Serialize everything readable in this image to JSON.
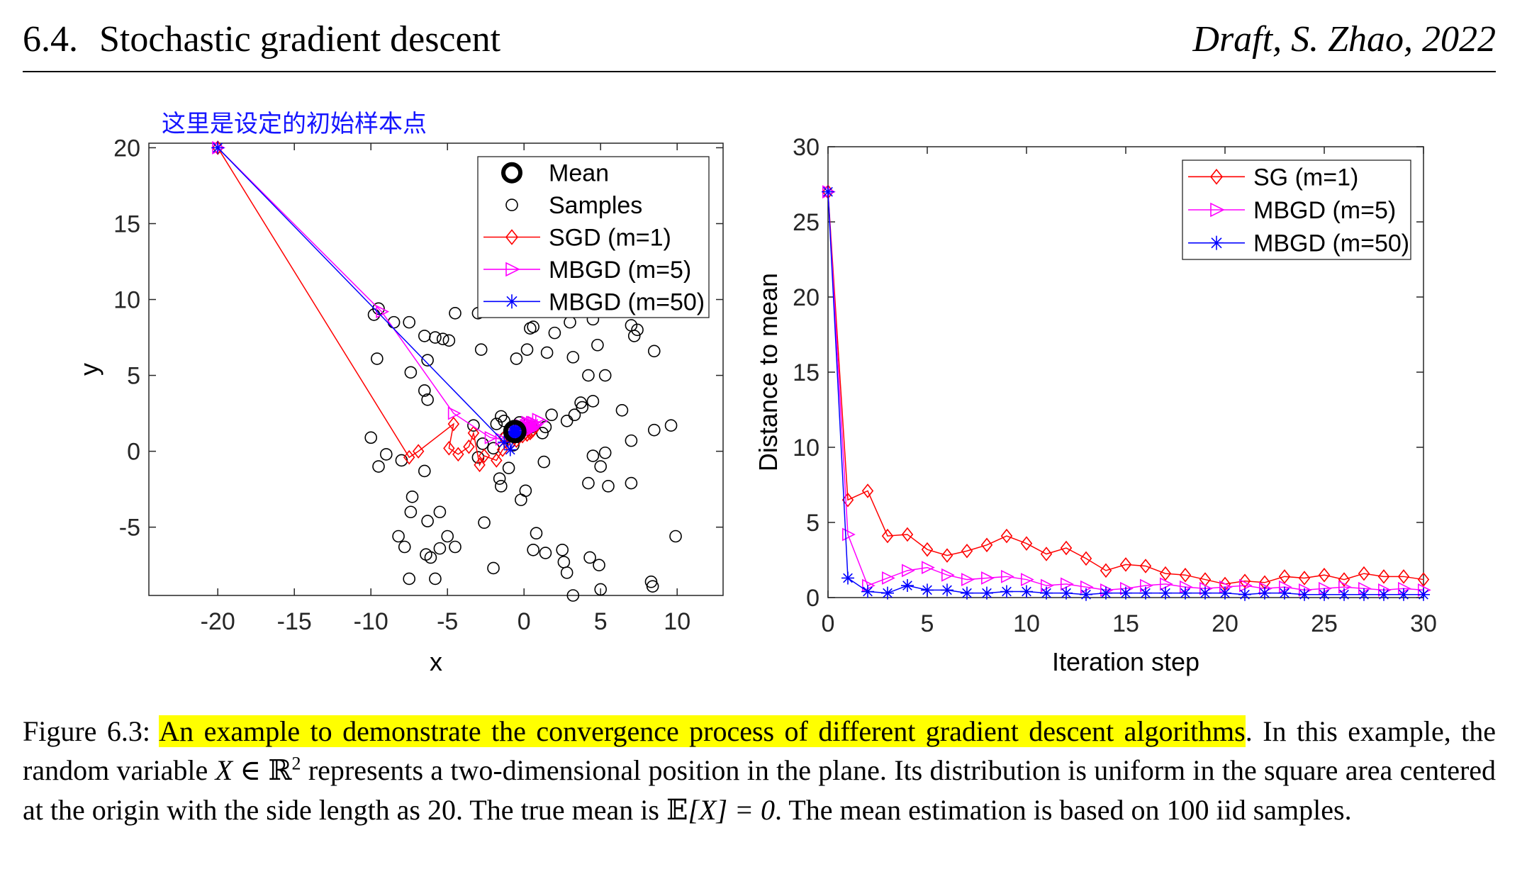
{
  "header": {
    "section_number": "6.4.",
    "section_title": "Stochastic gradient descent",
    "draft_note": "Draft, S. Zhao, 2022"
  },
  "annotation": {
    "text": "这里是设定的初始样本点",
    "color": "#1515ff"
  },
  "colors": {
    "sgd": "#ff0000",
    "mbgd5": "#ff00ff",
    "mbgd50": "#0000ff",
    "samples": "#000000",
    "highlight": "#ffff00"
  },
  "chart_data": [
    {
      "type": "scatter",
      "title": "",
      "xlabel": "x",
      "ylabel": "y",
      "xlim": [
        -24.5,
        13
      ],
      "ylim": [
        -9.5,
        20.3
      ],
      "xticks": [
        -20,
        -15,
        -10,
        -5,
        0,
        5,
        10
      ],
      "yticks": [
        -5,
        0,
        5,
        10,
        15,
        20
      ],
      "xtick_labels": [
        "-20",
        "-15",
        "-10",
        "-5",
        "0",
        "5",
        "10"
      ],
      "ytick_labels": [
        "-5",
        "0",
        "5",
        "10",
        "15",
        "20"
      ],
      "grid": false,
      "legend_position": "top-right",
      "legend": [
        "Mean",
        "Samples",
        "SGD (m=1)",
        "MBGD (m=5)",
        "MBGD (m=50)"
      ],
      "mean": [
        -0.6,
        1.3
      ],
      "samples": [
        [
          -9.8,
          9.0
        ],
        [
          -9.5,
          9.4
        ],
        [
          -8.5,
          8.5
        ],
        [
          -7.5,
          8.5
        ],
        [
          -6.5,
          7.6
        ],
        [
          -5.8,
          7.5
        ],
        [
          -5.3,
          7.4
        ],
        [
          -4.9,
          7.3
        ],
        [
          -4.5,
          9.1
        ],
        [
          -3.0,
          9.1
        ],
        [
          -9.6,
          6.1
        ],
        [
          -7.4,
          5.2
        ],
        [
          -6.3,
          6.0
        ],
        [
          -6.5,
          4.0
        ],
        [
          -6.3,
          3.4
        ],
        [
          -2.8,
          6.7
        ],
        [
          0.2,
          6.7
        ],
        [
          -0.5,
          6.1
        ],
        [
          1.5,
          6.5
        ],
        [
          3.2,
          6.2
        ],
        [
          4.2,
          5.0
        ],
        [
          5.3,
          5.0
        ],
        [
          0.4,
          8.1
        ],
        [
          0.6,
          8.2
        ],
        [
          2.0,
          7.8
        ],
        [
          3.0,
          8.5
        ],
        [
          4.8,
          7.0
        ],
        [
          7.0,
          8.3
        ],
        [
          7.4,
          8.0
        ],
        [
          7.2,
          7.6
        ],
        [
          8.5,
          6.6
        ],
        [
          4.5,
          8.7
        ],
        [
          -10.0,
          0.9
        ],
        [
          -9.0,
          -0.2
        ],
        [
          -9.5,
          -1.0
        ],
        [
          -8.0,
          -0.6
        ],
        [
          -6.5,
          -1.3
        ],
        [
          -7.3,
          -3.0
        ],
        [
          -7.4,
          -4.0
        ],
        [
          -6.3,
          -4.6
        ],
        [
          -5.5,
          -4.0
        ],
        [
          -8.2,
          -5.6
        ],
        [
          -7.8,
          -6.3
        ],
        [
          -6.4,
          -6.8
        ],
        [
          -6.1,
          -7.0
        ],
        [
          -5.5,
          -6.4
        ],
        [
          -5.0,
          -5.6
        ],
        [
          -4.5,
          -6.3
        ],
        [
          -7.5,
          -8.4
        ],
        [
          -5.8,
          -8.4
        ],
        [
          -2.6,
          -4.7
        ],
        [
          -2.0,
          -7.7
        ],
        [
          -1.6,
          -1.8
        ],
        [
          -1.5,
          -2.3
        ],
        [
          -1.0,
          -1.1
        ],
        [
          -0.2,
          -3.2
        ],
        [
          0.1,
          -2.6
        ],
        [
          0.6,
          -6.5
        ],
        [
          0.8,
          -5.4
        ],
        [
          1.4,
          -6.7
        ],
        [
          2.5,
          -6.5
        ],
        [
          2.6,
          -7.3
        ],
        [
          2.8,
          -8.0
        ],
        [
          3.2,
          -9.5
        ],
        [
          4.3,
          -7.0
        ],
        [
          4.9,
          -7.5
        ],
        [
          5.0,
          -9.1
        ],
        [
          4.2,
          -2.1
        ],
        [
          5.5,
          -2.3
        ],
        [
          4.5,
          -0.3
        ],
        [
          5.0,
          -1.0
        ],
        [
          5.3,
          -0.1
        ],
        [
          7.0,
          -2.1
        ],
        [
          7.0,
          0.7
        ],
        [
          8.3,
          -8.6
        ],
        [
          8.4,
          -8.9
        ],
        [
          9.9,
          -5.6
        ],
        [
          8.5,
          1.4
        ],
        [
          9.6,
          1.7
        ],
        [
          6.4,
          2.7
        ],
        [
          4.5,
          3.3
        ],
        [
          3.7,
          3.2
        ],
        [
          3.3,
          2.4
        ],
        [
          3.8,
          2.9
        ],
        [
          2.8,
          2.0
        ],
        [
          1.2,
          1.2
        ],
        [
          1.4,
          1.6
        ],
        [
          1.3,
          -0.7
        ],
        [
          -1.5,
          2.3
        ],
        [
          -1.3,
          2.0
        ],
        [
          -0.7,
          0.4
        ],
        [
          -2.0,
          0.2
        ],
        [
          -3.3,
          1.7
        ],
        [
          -2.7,
          0.5
        ],
        [
          -1.8,
          1.8
        ],
        [
          -3.0,
          -0.4
        ],
        [
          -1.2,
          0.9
        ],
        [
          1.8,
          2.4
        ],
        [
          0.5,
          1.6
        ],
        [
          -0.3,
          1.9
        ]
      ],
      "series": [
        {
          "name": "SGD (m=1)",
          "marker": "diamond",
          "points": [
            [
              -20,
              20
            ],
            [
              -7.5,
              -0.4
            ],
            [
              -6.9,
              0.0
            ],
            [
              -4.6,
              1.8
            ],
            [
              -4.9,
              0.2
            ],
            [
              -4.3,
              -0.2
            ],
            [
              -3.6,
              0.3
            ],
            [
              -3.3,
              1.2
            ],
            [
              -2.9,
              -0.9
            ],
            [
              -2.6,
              -0.3
            ],
            [
              -1.8,
              -0.6
            ],
            [
              -1.4,
              0.1
            ],
            [
              -0.9,
              0.5
            ],
            [
              -1.3,
              0.9
            ],
            [
              -0.5,
              0.7
            ],
            [
              -0.1,
              1.0
            ],
            [
              0.3,
              1.4
            ],
            [
              -0.3,
              1.3
            ],
            [
              0.2,
              1.1
            ],
            [
              0.4,
              1.6
            ],
            [
              -0.2,
              1.5
            ],
            [
              0.6,
              1.4
            ],
            [
              0.1,
              1.2
            ],
            [
              -0.4,
              1.3
            ],
            [
              0.3,
              1.5
            ],
            [
              -0.1,
              1.2
            ],
            [
              0.5,
              1.3
            ],
            [
              0.0,
              1.4
            ],
            [
              -0.2,
              1.1
            ],
            [
              0.2,
              1.5
            ],
            [
              0.4,
              1.2
            ]
          ]
        },
        {
          "name": "MBGD (m=5)",
          "marker": "triangle-right",
          "points": [
            [
              -20,
              20
            ],
            [
              -9.3,
              9.2
            ],
            [
              -4.6,
              2.5
            ],
            [
              -2.2,
              0.9
            ],
            [
              -1.5,
              0.8
            ],
            [
              -0.6,
              1.4
            ],
            [
              -0.2,
              1.7
            ],
            [
              0.2,
              1.5
            ],
            [
              0.5,
              1.9
            ],
            [
              0.8,
              1.8
            ],
            [
              1.1,
              2.0
            ],
            [
              0.6,
              1.6
            ],
            [
              0.3,
              1.6
            ],
            [
              0.9,
              2.1
            ],
            [
              0.4,
              1.7
            ],
            [
              0.0,
              1.5
            ],
            [
              0.6,
              1.9
            ],
            [
              0.3,
              1.4
            ],
            [
              -0.1,
              1.5
            ],
            [
              0.4,
              1.8
            ],
            [
              0.2,
              1.6
            ],
            [
              0.7,
              1.7
            ],
            [
              -0.2,
              1.4
            ],
            [
              0.2,
              1.9
            ],
            [
              0.5,
              1.5
            ],
            [
              0.1,
              1.7
            ],
            [
              0.4,
              1.4
            ],
            [
              0.0,
              1.6
            ],
            [
              0.3,
              1.8
            ],
            [
              0.1,
              1.5
            ],
            [
              0.2,
              1.6
            ]
          ]
        },
        {
          "name": "MBGD (m=50)",
          "marker": "asterisk",
          "points": [
            [
              -20,
              20
            ],
            [
              -1.3,
              0.6
            ],
            [
              -0.9,
              0.1
            ],
            [
              -0.6,
              1.0
            ],
            [
              -0.4,
              1.4
            ],
            [
              -0.6,
              1.1
            ],
            [
              -0.5,
              1.3
            ],
            [
              -0.6,
              1.2
            ],
            [
              -0.5,
              1.4
            ],
            [
              -0.7,
              1.3
            ],
            [
              -0.5,
              1.2
            ],
            [
              -0.6,
              1.3
            ],
            [
              -0.5,
              1.4
            ],
            [
              -0.6,
              1.2
            ],
            [
              -0.6,
              1.3
            ],
            [
              -0.5,
              1.3
            ],
            [
              -0.6,
              1.4
            ],
            [
              -0.6,
              1.3
            ],
            [
              -0.5,
              1.2
            ],
            [
              -0.6,
              1.3
            ],
            [
              -0.6,
              1.3
            ],
            [
              -0.5,
              1.3
            ],
            [
              -0.6,
              1.2
            ],
            [
              -0.6,
              1.3
            ],
            [
              -0.5,
              1.3
            ],
            [
              -0.6,
              1.3
            ],
            [
              -0.6,
              1.3
            ],
            [
              -0.6,
              1.3
            ],
            [
              -0.6,
              1.3
            ],
            [
              -0.6,
              1.3
            ],
            [
              -0.6,
              1.3
            ]
          ]
        }
      ]
    },
    {
      "type": "line",
      "title": "",
      "xlabel": "Iteration step",
      "ylabel": "Distance to mean",
      "xlim": [
        0,
        30
      ],
      "ylim": [
        0,
        30
      ],
      "xticks": [
        0,
        5,
        10,
        15,
        20,
        25,
        30
      ],
      "yticks": [
        0,
        5,
        10,
        15,
        20,
        25,
        30
      ],
      "xtick_labels": [
        "0",
        "5",
        "10",
        "15",
        "20",
        "25",
        "30"
      ],
      "ytick_labels": [
        "0",
        "5",
        "10",
        "15",
        "20",
        "25",
        "30"
      ],
      "grid": false,
      "legend_position": "top-right",
      "x": [
        0,
        1,
        2,
        3,
        4,
        5,
        6,
        7,
        8,
        9,
        10,
        11,
        12,
        13,
        14,
        15,
        16,
        17,
        18,
        19,
        20,
        21,
        22,
        23,
        24,
        25,
        26,
        27,
        28,
        29,
        30
      ],
      "series": [
        {
          "name": "SG (m=1)",
          "marker": "diamond",
          "values": [
            27.0,
            6.5,
            7.1,
            4.1,
            4.2,
            3.2,
            2.8,
            3.1,
            3.5,
            4.1,
            3.6,
            2.9,
            3.3,
            2.6,
            1.8,
            2.2,
            2.1,
            1.6,
            1.5,
            1.2,
            0.9,
            1.1,
            1.0,
            1.4,
            1.3,
            1.5,
            1.2,
            1.6,
            1.4,
            1.4,
            1.2
          ]
        },
        {
          "name": "MBGD (m=5)",
          "marker": "triangle-right",
          "values": [
            27.0,
            4.2,
            0.8,
            1.3,
            1.8,
            2.0,
            1.5,
            1.2,
            1.3,
            1.4,
            1.2,
            0.8,
            0.9,
            0.7,
            0.5,
            0.6,
            0.8,
            0.9,
            0.7,
            0.6,
            0.7,
            0.8,
            0.6,
            0.7,
            0.5,
            0.6,
            0.7,
            0.6,
            0.5,
            0.6,
            0.5
          ]
        },
        {
          "name": "MBGD (m=50)",
          "marker": "asterisk",
          "values": [
            27.0,
            1.3,
            0.4,
            0.3,
            0.8,
            0.5,
            0.5,
            0.3,
            0.3,
            0.4,
            0.4,
            0.3,
            0.3,
            0.2,
            0.3,
            0.3,
            0.3,
            0.3,
            0.3,
            0.3,
            0.3,
            0.2,
            0.3,
            0.3,
            0.2,
            0.2,
            0.2,
            0.2,
            0.2,
            0.2,
            0.2
          ]
        }
      ]
    }
  ],
  "caption": {
    "label": "Figure 6.3:",
    "highlighted": "An example to demonstrate the convergence process of different gradient descent algorithms",
    "after_highlight": ".",
    "line2_a": "In this example, the random variable",
    "var_X": "X",
    "in_symbol": "∈",
    "reals": "ℝ",
    "exponent": "2",
    "line2_b": "represents a two-dimensional position in the plane. Its distribution is uniform in the square area centered at the origin with the side length as 20. The true mean is",
    "expectation": "𝔼",
    "expectation_arg": "[X] = 0",
    "line4_b": ". The mean estimation is based on 100 iid samples."
  }
}
